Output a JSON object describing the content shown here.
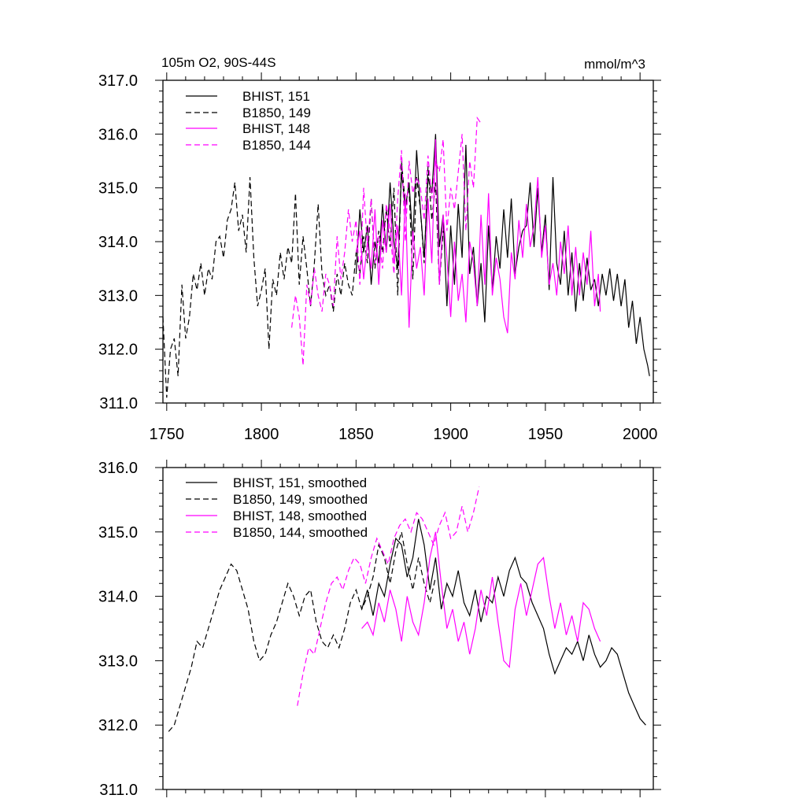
{
  "colors": {
    "black": "#000000",
    "magenta": "#ff00ff"
  },
  "chart_data": [
    {
      "type": "line",
      "title": "105m O2, 90S-44S",
      "units": "mmol/m^3",
      "xlim": [
        1748,
        2007
      ],
      "ylim": [
        311.0,
        317.0
      ],
      "xticks": [
        1750,
        1800,
        1850,
        1900,
        1950,
        2000
      ],
      "yticks": [
        "311.0",
        "312.0",
        "313.0",
        "314.0",
        "315.0",
        "316.0",
        "317.0"
      ],
      "legend_position": "top-left",
      "series": [
        {
          "name": "BHIST, 151",
          "color": "#000000",
          "dash": "solid",
          "x": [
            1850,
            1852,
            1854,
            1856,
            1858,
            1860,
            1862,
            1864,
            1866,
            1868,
            1870,
            1872,
            1874,
            1876,
            1878,
            1880,
            1882,
            1884,
            1886,
            1888,
            1890,
            1892,
            1894,
            1896,
            1898,
            1900,
            1902,
            1904,
            1906,
            1908,
            1910,
            1912,
            1914,
            1916,
            1918,
            1920,
            1922,
            1924,
            1926,
            1928,
            1930,
            1932,
            1934,
            1936,
            1938,
            1940,
            1942,
            1944,
            1946,
            1948,
            1950,
            1952,
            1954,
            1956,
            1958,
            1960,
            1962,
            1964,
            1966,
            1968,
            1970,
            1972,
            1974,
            1976,
            1978,
            1980,
            1982,
            1984,
            1986,
            1988,
            1990,
            1992,
            1994,
            1996,
            1998,
            2000,
            2002,
            2004,
            2005
          ],
          "y": [
            313.4,
            314.6,
            313.8,
            314.3,
            313.2,
            314.0,
            313.6,
            314.7,
            313.8,
            315.1,
            314.0,
            313.5,
            315.3,
            314.6,
            315.1,
            314.0,
            315.7,
            314.6,
            313.7,
            315.2,
            314.9,
            316.0,
            313.9,
            314.5,
            312.8,
            314.3,
            313.2,
            314.7,
            313.7,
            315.8,
            313.4,
            313.9,
            312.8,
            313.6,
            312.5,
            314.3,
            313.1,
            314.1,
            313.5,
            314.6,
            313.7,
            314.8,
            313.4,
            313.9,
            314.2,
            314.3,
            315.1,
            313.9,
            315.0,
            313.8,
            314.5,
            313.1,
            315.2,
            313.6,
            313.2,
            314.2,
            313.0,
            313.8,
            312.7,
            313.6,
            312.9,
            313.7,
            313.1,
            313.3,
            312.8,
            313.4,
            313.0,
            313.5,
            312.9,
            313.4,
            312.8,
            313.3,
            312.4,
            312.9,
            312.1,
            312.6,
            312.0,
            311.7,
            311.5
          ]
        },
        {
          "name": "B1850, 149",
          "color": "#000000",
          "dash": "dashed",
          "x": [
            1748,
            1750,
            1752,
            1754,
            1756,
            1758,
            1760,
            1762,
            1764,
            1766,
            1768,
            1770,
            1772,
            1774,
            1776,
            1778,
            1780,
            1782,
            1784,
            1786,
            1788,
            1790,
            1792,
            1794,
            1796,
            1798,
            1800,
            1802,
            1804,
            1806,
            1808,
            1810,
            1812,
            1814,
            1816,
            1818,
            1820,
            1822,
            1824,
            1826,
            1828,
            1830,
            1832,
            1834,
            1836,
            1838,
            1840,
            1842,
            1844,
            1846,
            1848,
            1850,
            1852,
            1854,
            1856,
            1858,
            1860,
            1862,
            1864,
            1866,
            1868,
            1870,
            1872,
            1874,
            1876,
            1878,
            1880,
            1882,
            1884,
            1886,
            1888,
            1890,
            1892,
            1894,
            1896
          ],
          "y": [
            312.6,
            311.1,
            312.0,
            312.2,
            311.5,
            313.2,
            312.2,
            312.6,
            313.4,
            313.1,
            313.6,
            313.0,
            313.5,
            313.3,
            314.0,
            314.1,
            313.7,
            314.4,
            314.6,
            315.1,
            314.2,
            314.5,
            313.8,
            315.2,
            313.7,
            312.8,
            313.1,
            313.5,
            312.0,
            313.3,
            313.0,
            313.8,
            313.3,
            313.9,
            313.6,
            314.9,
            313.2,
            314.1,
            313.5,
            312.8,
            313.6,
            314.7,
            313.4,
            313.0,
            313.2,
            312.7,
            313.4,
            313.0,
            313.6,
            313.2,
            313.0,
            313.8,
            313.4,
            314.1,
            313.6,
            314.8,
            313.5,
            314.2,
            313.8,
            314.6,
            313.9,
            315.0,
            313.0,
            315.5,
            314.7,
            315.0,
            313.3,
            315.2,
            314.6,
            313.6,
            315.4,
            314.4,
            315.1,
            313.2,
            314.2
          ]
        },
        {
          "name": "BHIST, 148",
          "color": "#ff00ff",
          "dash": "solid",
          "x": [
            1850,
            1852,
            1854,
            1856,
            1858,
            1860,
            1862,
            1864,
            1866,
            1868,
            1870,
            1872,
            1874,
            1876,
            1878,
            1880,
            1882,
            1884,
            1886,
            1888,
            1890,
            1892,
            1894,
            1896,
            1898,
            1900,
            1902,
            1904,
            1906,
            1908,
            1910,
            1912,
            1914,
            1916,
            1918,
            1920,
            1922,
            1924,
            1926,
            1928,
            1930,
            1932,
            1934,
            1936,
            1938,
            1940,
            1942,
            1944,
            1946,
            1948,
            1950,
            1952,
            1954,
            1956,
            1958,
            1960,
            1962,
            1964,
            1966,
            1968,
            1970,
            1972,
            1974,
            1976,
            1978,
            1979
          ],
          "y": [
            313.8,
            314.2,
            313.3,
            314.0,
            313.5,
            314.6,
            313.2,
            314.4,
            313.8,
            314.7,
            313.6,
            314.3,
            313.0,
            314.9,
            312.4,
            314.2,
            313.5,
            313.9,
            313.0,
            314.8,
            313.6,
            315.9,
            313.2,
            314.5,
            313.7,
            312.6,
            314.0,
            312.9,
            313.4,
            312.5,
            314.0,
            313.6,
            312.8,
            314.5,
            313.2,
            314.9,
            313.0,
            313.7,
            313.3,
            312.6,
            312.3,
            313.8,
            313.3,
            314.4,
            313.7,
            314.7,
            313.9,
            314.3,
            315.2,
            313.7,
            314.3,
            313.2,
            313.6,
            313.0,
            314.0,
            313.4,
            314.3,
            313.0,
            313.9,
            313.0,
            313.8,
            313.2,
            314.2,
            312.8,
            313.4,
            312.7
          ]
        },
        {
          "name": "B1850, 144",
          "color": "#ff00ff",
          "dash": "dashed",
          "x": [
            1816,
            1818,
            1820,
            1822,
            1824,
            1826,
            1828,
            1830,
            1832,
            1834,
            1836,
            1838,
            1840,
            1842,
            1844,
            1846,
            1848,
            1850,
            1852,
            1854,
            1856,
            1858,
            1860,
            1862,
            1864,
            1866,
            1868,
            1870,
            1872,
            1874,
            1876,
            1878,
            1880,
            1882,
            1884,
            1886,
            1888,
            1890,
            1892,
            1894,
            1896,
            1898,
            1900,
            1902,
            1904,
            1906,
            1908,
            1910,
            1912,
            1914,
            1916
          ],
          "y": [
            312.4,
            313.0,
            312.6,
            311.7,
            313.2,
            312.8,
            313.5,
            313.0,
            312.7,
            313.4,
            313.2,
            312.8,
            314.1,
            313.3,
            313.8,
            314.6,
            314.0,
            314.4,
            313.2,
            315.0,
            313.9,
            314.8,
            313.6,
            314.1,
            313.5,
            314.7,
            314.2,
            313.4,
            314.8,
            315.7,
            314.0,
            315.5,
            314.9,
            315.2,
            315.0,
            314.4,
            315.6,
            314.8,
            315.5,
            315.3,
            315.9,
            314.2,
            315.0,
            314.6,
            315.3,
            316.0,
            314.2,
            315.5,
            315.0,
            316.3,
            316.2
          ]
        }
      ]
    },
    {
      "type": "line",
      "xlim": [
        1748,
        2007
      ],
      "ylim": [
        311.0,
        316.0
      ],
      "xticks": [
        1750,
        1800,
        1850,
        1900,
        1950,
        2000
      ],
      "yticks": [
        "311.0",
        "312.0",
        "313.0",
        "314.0",
        "315.0",
        "316.0"
      ],
      "legend_position": "top-left",
      "series": [
        {
          "name": "BHIST, 151, smoothed",
          "color": "#000000",
          "dash": "solid",
          "x": [
            1853,
            1856,
            1859,
            1862,
            1865,
            1868,
            1871,
            1874,
            1877,
            1880,
            1883,
            1886,
            1889,
            1892,
            1895,
            1898,
            1901,
            1904,
            1907,
            1910,
            1913,
            1916,
            1919,
            1922,
            1925,
            1928,
            1931,
            1934,
            1937,
            1940,
            1943,
            1946,
            1949,
            1952,
            1955,
            1958,
            1961,
            1964,
            1967,
            1970,
            1973,
            1976,
            1979,
            1982,
            1985,
            1988,
            1991,
            1994,
            1997,
            2000,
            2003
          ],
          "y": [
            313.8,
            314.1,
            313.7,
            314.2,
            314.0,
            314.5,
            314.9,
            314.8,
            314.3,
            314.6,
            315.2,
            314.8,
            314.1,
            314.6,
            313.8,
            314.2,
            314.0,
            314.4,
            313.9,
            313.7,
            314.1,
            313.6,
            314.0,
            313.9,
            314.3,
            314.0,
            314.4,
            314.6,
            314.3,
            314.2,
            313.9,
            313.7,
            313.5,
            313.1,
            312.8,
            313.0,
            313.2,
            313.1,
            313.3,
            313.0,
            313.4,
            313.1,
            312.9,
            313.0,
            313.2,
            313.1,
            312.8,
            312.5,
            312.3,
            312.1,
            312.0
          ]
        },
        {
          "name": "B1850, 149, smoothed",
          "color": "#000000",
          "dash": "dashed",
          "x": [
            1751,
            1754,
            1757,
            1760,
            1763,
            1766,
            1769,
            1772,
            1775,
            1778,
            1781,
            1784,
            1787,
            1790,
            1793,
            1796,
            1799,
            1802,
            1805,
            1808,
            1811,
            1814,
            1817,
            1820,
            1823,
            1826,
            1829,
            1832,
            1835,
            1838,
            1841,
            1844,
            1847,
            1850,
            1853,
            1856,
            1859,
            1862,
            1865,
            1868,
            1871,
            1874,
            1877,
            1880,
            1883,
            1886,
            1889,
            1892
          ],
          "y": [
            311.9,
            312.0,
            312.3,
            312.6,
            312.9,
            313.3,
            313.2,
            313.5,
            313.8,
            314.1,
            314.3,
            314.5,
            314.4,
            314.1,
            313.8,
            313.3,
            313.0,
            313.1,
            313.4,
            313.6,
            313.9,
            314.2,
            314.0,
            313.7,
            314.0,
            314.1,
            313.6,
            313.3,
            313.2,
            313.4,
            313.2,
            313.5,
            313.9,
            314.1,
            313.8,
            314.0,
            314.3,
            314.8,
            314.6,
            314.2,
            314.7,
            315.0,
            314.5,
            314.1,
            314.6,
            314.2,
            313.9,
            314.3
          ]
        },
        {
          "name": "BHIST, 148, smoothed",
          "color": "#ff00ff",
          "dash": "solid",
          "x": [
            1853,
            1856,
            1859,
            1862,
            1865,
            1868,
            1871,
            1874,
            1877,
            1880,
            1883,
            1886,
            1889,
            1892,
            1895,
            1898,
            1901,
            1904,
            1907,
            1910,
            1913,
            1916,
            1919,
            1922,
            1925,
            1928,
            1931,
            1934,
            1937,
            1940,
            1943,
            1946,
            1949,
            1952,
            1955,
            1958,
            1961,
            1964,
            1967,
            1970,
            1973,
            1976,
            1979
          ],
          "y": [
            313.5,
            313.6,
            313.4,
            313.9,
            313.6,
            314.1,
            313.8,
            313.3,
            314.0,
            313.6,
            313.4,
            313.9,
            314.6,
            315.0,
            314.2,
            313.5,
            313.8,
            313.3,
            313.6,
            313.1,
            313.5,
            314.1,
            313.7,
            314.3,
            313.6,
            313.0,
            312.9,
            313.8,
            314.2,
            313.7,
            314.1,
            314.5,
            314.6,
            314.0,
            313.5,
            313.9,
            313.4,
            313.7,
            313.3,
            313.9,
            313.8,
            313.5,
            313.3
          ]
        },
        {
          "name": "B1850, 144, smoothed",
          "color": "#ff00ff",
          "dash": "dashed",
          "x": [
            1819,
            1822,
            1825,
            1828,
            1831,
            1834,
            1837,
            1840,
            1843,
            1846,
            1849,
            1852,
            1855,
            1858,
            1861,
            1864,
            1867,
            1870,
            1873,
            1876,
            1879,
            1882,
            1885,
            1888,
            1891,
            1894,
            1897,
            1900,
            1903,
            1906,
            1909,
            1912,
            1915
          ],
          "y": [
            312.3,
            312.8,
            313.2,
            313.1,
            313.5,
            313.9,
            314.2,
            314.3,
            314.1,
            314.4,
            314.6,
            314.5,
            314.2,
            314.6,
            314.9,
            314.7,
            314.5,
            314.9,
            315.1,
            315.2,
            315.0,
            315.3,
            315.2,
            315.0,
            314.8,
            315.1,
            315.3,
            314.9,
            315.0,
            315.4,
            315.0,
            315.3,
            315.7
          ]
        }
      ]
    }
  ]
}
